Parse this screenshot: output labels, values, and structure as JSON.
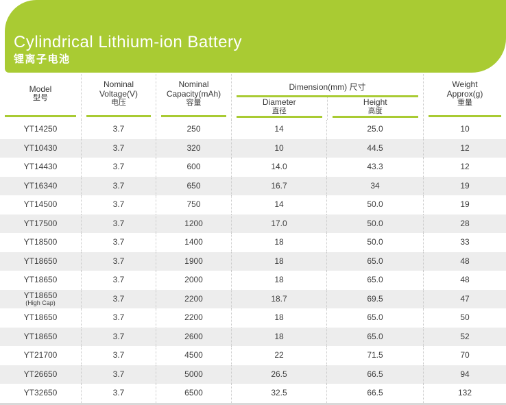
{
  "banner": {
    "title": "Cylindrical Lithium-ion Battery",
    "subtitle": "锂离子电池",
    "background_color": "#a9cb33",
    "text_color": "#ffffff"
  },
  "table": {
    "header": {
      "model": {
        "en": "Model",
        "zh": "型号"
      },
      "voltage": {
        "en": "Nominal\nVoltage(V)",
        "zh": "电压"
      },
      "capacity": {
        "en": "Nominal\nCapacity(mAh)",
        "zh": "容量"
      },
      "dimension_group": "Dimension(mm) 尺寸",
      "diameter": {
        "en": "Diameter",
        "zh": "直径"
      },
      "height": {
        "en": "Height",
        "zh": "高度"
      },
      "weight": {
        "en": "Weight\nApprox(g)",
        "zh": "重量"
      }
    },
    "rows": [
      {
        "model": "YT14250",
        "note": "",
        "voltage": "3.7",
        "capacity": "250",
        "diameter": "14",
        "height": "25.0",
        "weight": "10"
      },
      {
        "model": "YT10430",
        "note": "",
        "voltage": "3.7",
        "capacity": "320",
        "diameter": "10",
        "height": "44.5",
        "weight": "12"
      },
      {
        "model": "YT14430",
        "note": "",
        "voltage": "3.7",
        "capacity": "600",
        "diameter": "14.0",
        "height": "43.3",
        "weight": "12"
      },
      {
        "model": "YT16340",
        "note": "",
        "voltage": "3.7",
        "capacity": "650",
        "diameter": "16.7",
        "height": "34",
        "weight": "19"
      },
      {
        "model": "YT14500",
        "note": "",
        "voltage": "3.7",
        "capacity": "750",
        "diameter": "14",
        "height": "50.0",
        "weight": "19"
      },
      {
        "model": "YT17500",
        "note": "",
        "voltage": "3.7",
        "capacity": "1200",
        "diameter": "17.0",
        "height": "50.0",
        "weight": "28"
      },
      {
        "model": "YT18500",
        "note": "",
        "voltage": "3.7",
        "capacity": "1400",
        "diameter": "18",
        "height": "50.0",
        "weight": "33"
      },
      {
        "model": "YT18650",
        "note": "",
        "voltage": "3.7",
        "capacity": "1900",
        "diameter": "18",
        "height": "65.0",
        "weight": "48"
      },
      {
        "model": "YT18650",
        "note": "",
        "voltage": "3.7",
        "capacity": "2000",
        "diameter": "18",
        "height": "65.0",
        "weight": "48"
      },
      {
        "model": "YT18650",
        "note": "(High Cap)",
        "voltage": "3.7",
        "capacity": "2200",
        "diameter": "18.7",
        "height": "69.5",
        "weight": "47"
      },
      {
        "model": "YT18650",
        "note": "",
        "voltage": "3.7",
        "capacity": "2200",
        "diameter": "18",
        "height": "65.0",
        "weight": "50"
      },
      {
        "model": "YT18650",
        "note": "",
        "voltage": "3.7",
        "capacity": "2600",
        "diameter": "18",
        "height": "65.0",
        "weight": "52"
      },
      {
        "model": "YT21700",
        "note": "",
        "voltage": "3.7",
        "capacity": "4500",
        "diameter": "22",
        "height": "71.5",
        "weight": "70"
      },
      {
        "model": "YT26650",
        "note": "",
        "voltage": "3.7",
        "capacity": "5000",
        "diameter": "26.5",
        "height": "66.5",
        "weight": "94"
      },
      {
        "model": "YT32650",
        "note": "",
        "voltage": "3.7",
        "capacity": "6500",
        "diameter": "32.5",
        "height": "66.5",
        "weight": "132"
      }
    ]
  },
  "colors": {
    "accent_green": "#a9cb33",
    "row_stripe": "#ededed",
    "bottom_border": "#d9d9d9",
    "text": "#3c3c3c"
  }
}
